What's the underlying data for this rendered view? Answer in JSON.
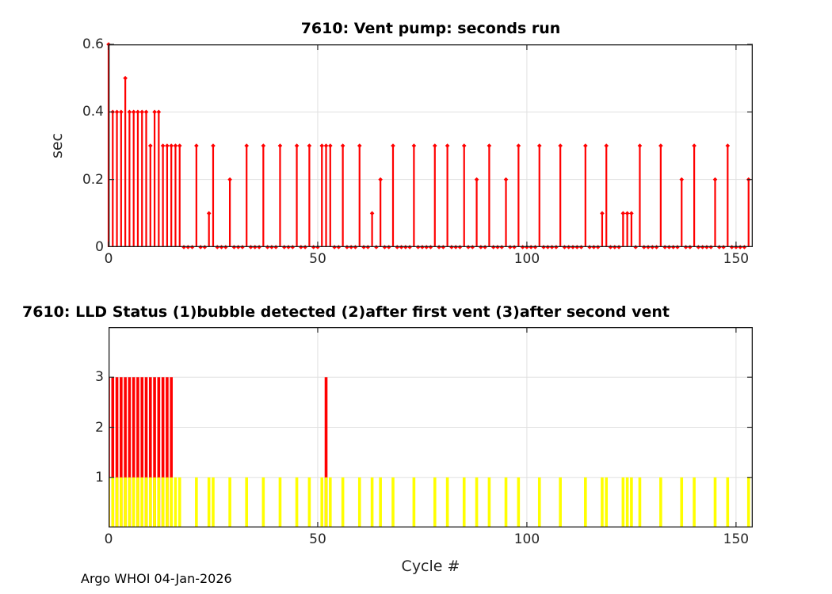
{
  "figure": {
    "footer": "Argo WHOI 04-Jan-2026",
    "background": "#ffffff"
  },
  "colors": {
    "stem": "#ff0000",
    "bar_red": "#ff0000",
    "bar_yellow": "#ffff00",
    "grid": "#e0e0e0",
    "axis": "#1a1a1a",
    "tick": "#262626"
  },
  "chart_data": [
    {
      "type": "stem",
      "title": "7610: Vent pump: seconds run",
      "ylabel": "sec",
      "xlim": [
        0,
        154
      ],
      "ylim": [
        0,
        0.6
      ],
      "xticks": [
        0,
        50,
        100,
        150
      ],
      "yticks": [
        0,
        0.2,
        0.4,
        0.6
      ],
      "grid": true,
      "series_color": "#ff0000",
      "x_start": 0,
      "values": [
        0.6,
        0.4,
        0.4,
        0.4,
        0.5,
        0.4,
        0.4,
        0.4,
        0.4,
        0.4,
        0.3,
        0.4,
        0.4,
        0.3,
        0.3,
        0.3,
        0.3,
        0.3,
        0,
        0,
        0,
        0.3,
        0,
        0,
        0.1,
        0.3,
        0,
        0,
        0,
        0.2,
        0,
        0,
        0,
        0.3,
        0,
        0,
        0,
        0.3,
        0,
        0,
        0,
        0.3,
        0,
        0,
        0,
        0.3,
        0,
        0,
        0.3,
        0,
        0,
        0.3,
        0.3,
        0.3,
        0,
        0,
        0.3,
        0,
        0,
        0,
        0.3,
        0,
        0,
        0.1,
        0,
        0.2,
        0,
        0,
        0.3,
        0,
        0,
        0,
        0,
        0.3,
        0,
        0,
        0,
        0,
        0.3,
        0,
        0,
        0.3,
        0,
        0,
        0,
        0.3,
        0,
        0,
        0.2,
        0,
        0,
        0.3,
        0,
        0,
        0,
        0.2,
        0,
        0,
        0.3,
        0,
        0,
        0,
        0,
        0.3,
        0,
        0,
        0,
        0,
        0.3,
        0,
        0,
        0,
        0,
        0,
        0.3,
        0,
        0,
        0,
        0.1,
        0.3,
        0,
        0,
        0,
        0.1,
        0.1,
        0.1,
        0,
        0.3,
        0,
        0,
        0,
        0,
        0.3,
        0,
        0,
        0,
        0,
        0.2,
        0,
        0,
        0.3,
        0,
        0,
        0,
        0,
        0.2,
        0,
        0,
        0.3,
        0,
        0,
        0,
        0,
        0.2
      ]
    },
    {
      "type": "bar",
      "title": "7610: LLD Status   (1)bubble detected   (2)after first vent  (3)after second vent",
      "xlabel": "Cycle #",
      "xlim": [
        0,
        154
      ],
      "ylim": [
        0,
        4
      ],
      "xticks": [
        0,
        50,
        100,
        150
      ],
      "yticks": [
        1,
        2,
        3
      ],
      "grid": true,
      "series": [
        {
          "name": "after second vent (status 3)",
          "color": "#ff0000",
          "height": 3,
          "cycles": [
            0,
            1,
            2,
            3,
            4,
            5,
            6,
            7,
            8,
            9,
            10,
            11,
            12,
            13,
            14,
            15,
            52
          ]
        },
        {
          "name": "bubble detected (status 1)",
          "color": "#ffff00",
          "height": 1,
          "cycles": [
            0,
            1,
            2,
            3,
            4,
            5,
            6,
            7,
            8,
            9,
            10,
            11,
            12,
            13,
            14,
            15,
            16,
            17,
            21,
            24,
            25,
            29,
            33,
            37,
            41,
            45,
            48,
            51,
            52,
            53,
            56,
            60,
            63,
            65,
            68,
            73,
            78,
            81,
            85,
            88,
            91,
            95,
            98,
            103,
            108,
            114,
            118,
            119,
            123,
            124,
            125,
            127,
            132,
            137,
            140,
            145,
            148,
            153
          ]
        }
      ]
    }
  ]
}
